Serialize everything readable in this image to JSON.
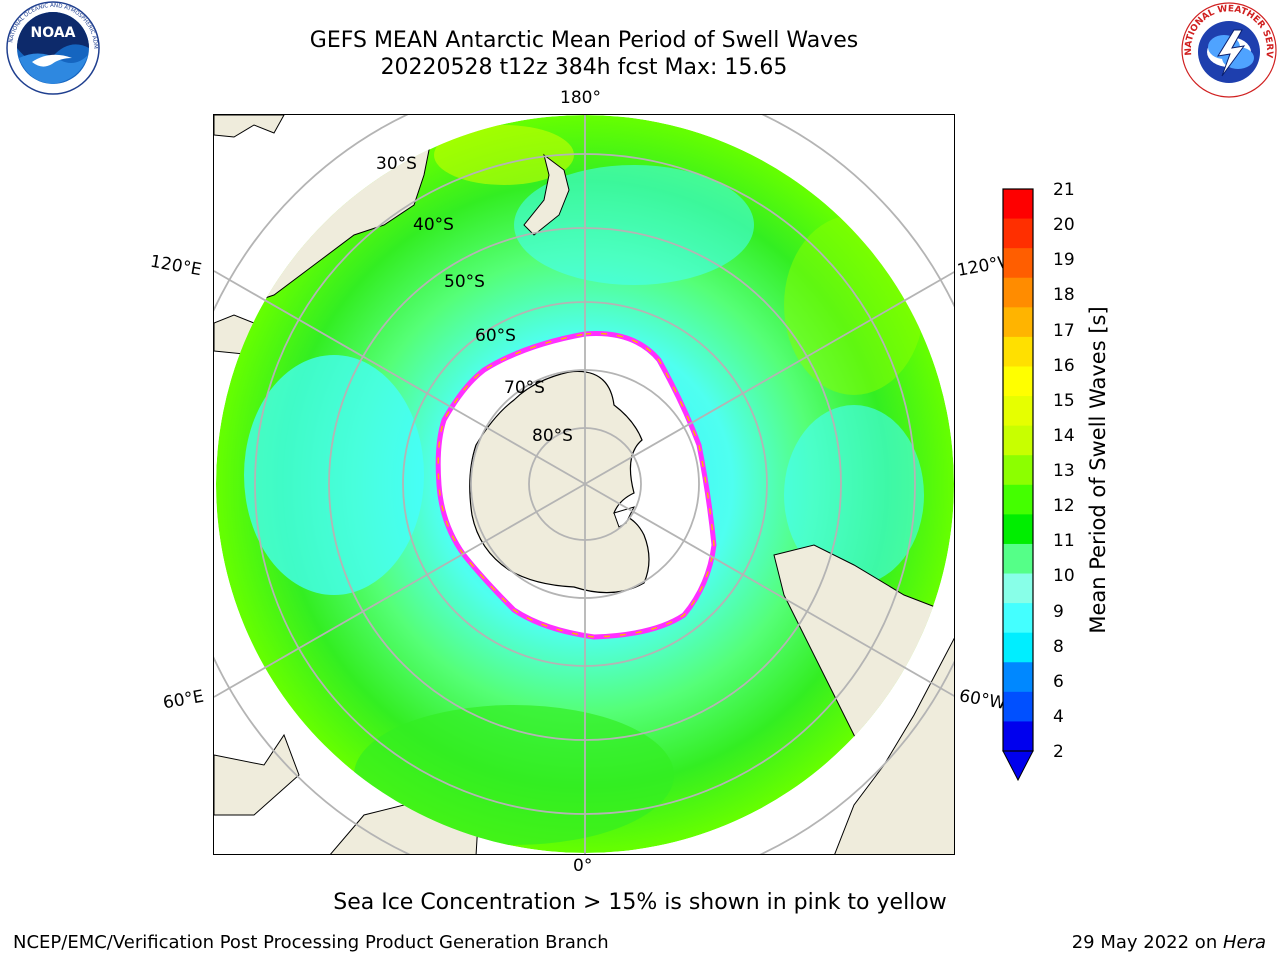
{
  "title": {
    "line1": "GEFS MEAN Antarctic Mean Period of Swell Waves",
    "line2": "20220528 t12z 384h fcst   Max: 15.65"
  },
  "logos": {
    "noaa": {
      "text": "NOAA",
      "icon": "noaa-logo-icon"
    },
    "nws": {
      "text": "NATIONAL WEATHER SERVICE",
      "icon": "nws-logo-icon"
    }
  },
  "map": {
    "projection": "south-polar-stereographic",
    "longitude_labels": {
      "top": "180°",
      "upper_left": "120°E",
      "upper_right": "120°W",
      "lower_left": "60°E",
      "lower_right": "60°W",
      "bottom": "0°"
    },
    "latitude_labels": [
      "30°S",
      "40°S",
      "50°S",
      "60°S",
      "70°S",
      "80°S"
    ],
    "colors": {
      "land": "#efecdc",
      "sea_ice": "#ffffff",
      "graticule": "#b4b4b4",
      "ice_edge": "#ff30ff"
    }
  },
  "colorbar": {
    "label": "Mean Period of Swell Waves [s]",
    "ticks": [
      "21",
      "20",
      "19",
      "18",
      "17",
      "16",
      "15",
      "14",
      "13",
      "12",
      "11",
      "10",
      "9",
      "8",
      "6",
      "4",
      "2"
    ],
    "colors": [
      "#fe0000",
      "#ff2f00",
      "#ff5e00",
      "#ff8c00",
      "#ffb400",
      "#ffe000",
      "#ffff00",
      "#e6ff00",
      "#c8ff00",
      "#8cff00",
      "#44ff00",
      "#00ee00",
      "#55ff88",
      "#88ffe8",
      "#44ffff",
      "#00eeff",
      "#0088ff",
      "#0050ff",
      "#0000ee"
    ]
  },
  "sea_ice_note": "Sea Ice Concentration > 15% is shown in pink to yellow",
  "footer": {
    "left": "NCEP/EMC/Verification Post Processing Product Generation Branch",
    "right_date": "29 May 2022 on ",
    "right_host": "Hera"
  }
}
